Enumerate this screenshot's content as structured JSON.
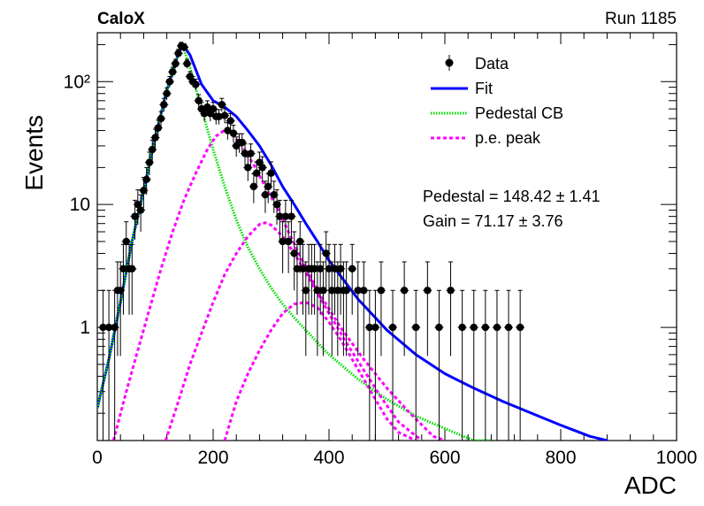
{
  "header": {
    "experiment": "CaloX",
    "run": "Run 1185"
  },
  "chart_data": {
    "type": "scatter",
    "title": "",
    "xlabel": "ADC",
    "ylabel": "Events",
    "xlim": [
      0,
      1000
    ],
    "ylim": [
      0.12,
      250
    ],
    "yscale": "log",
    "x_ticks": [
      0,
      200,
      400,
      600,
      800,
      1000
    ],
    "x_tick_labels": [
      "0",
      "200",
      "400",
      "600",
      "800",
      "1000"
    ],
    "y_ticks": [
      1,
      10,
      100
    ],
    "y_tick_labels": [
      "1",
      "10",
      "10²"
    ],
    "legend_position": "top-right",
    "colors": {
      "data": "#000000",
      "fit": "#0000ff",
      "pedestal": "#00dd00",
      "pe": "#ff00ff"
    },
    "legend": [
      {
        "label": "Data",
        "style": "marker"
      },
      {
        "label": "Fit",
        "style": "line"
      },
      {
        "label": "Pedestal CB",
        "style": "dotted"
      },
      {
        "label": "p.e. peak",
        "style": "dashed"
      }
    ],
    "annotations": {
      "pedestal": "Pedestal = 148.42 ± 1.41",
      "gain": "Gain = 71.17 ± 3.76"
    },
    "series": [
      {
        "name": "Data",
        "x": [
          10,
          20,
          30,
          35,
          40,
          45,
          50,
          55,
          60,
          65,
          70,
          75,
          80,
          85,
          90,
          95,
          100,
          105,
          110,
          115,
          120,
          125,
          130,
          135,
          140,
          145,
          150,
          155,
          160,
          165,
          170,
          175,
          180,
          185,
          190,
          195,
          200,
          205,
          210,
          215,
          220,
          225,
          230,
          235,
          240,
          245,
          250,
          255,
          260,
          265,
          270,
          275,
          280,
          285,
          290,
          295,
          300,
          305,
          310,
          315,
          320,
          325,
          330,
          335,
          340,
          345,
          350,
          355,
          360,
          365,
          370,
          375,
          380,
          385,
          390,
          395,
          400,
          405,
          410,
          415,
          420,
          425,
          430,
          440,
          450,
          460,
          470,
          480,
          490,
          510,
          530,
          550,
          570,
          590,
          610,
          630,
          650,
          670,
          690,
          710,
          730
        ],
        "y": [
          1,
          1,
          1,
          2,
          2,
          3,
          5,
          3,
          3,
          8,
          10,
          9,
          13,
          16,
          22,
          28,
          35,
          42,
          50,
          65,
          80,
          100,
          120,
          140,
          170,
          195,
          190,
          140,
          110,
          100,
          95,
          70,
          60,
          55,
          62,
          55,
          60,
          52,
          52,
          65,
          53,
          40,
          48,
          38,
          30,
          32,
          32,
          26,
          20,
          26,
          14,
          18,
          22,
          20,
          12,
          14,
          18,
          12,
          10,
          8,
          5,
          8,
          5,
          8,
          4,
          3,
          5,
          3,
          2,
          3,
          3,
          3,
          2,
          3,
          2,
          4,
          3,
          2,
          3,
          2,
          3,
          2,
          2,
          3,
          2,
          2,
          1,
          1,
          2,
          1,
          2,
          1,
          2,
          1,
          2,
          1,
          1,
          1,
          1,
          1,
          1
        ]
      },
      {
        "name": "Fit",
        "x": [
          0,
          20,
          40,
          60,
          80,
          100,
          120,
          140,
          148,
          160,
          180,
          200,
          220,
          240,
          260,
          280,
          300,
          320,
          340,
          360,
          380,
          400,
          450,
          500,
          550,
          600,
          650,
          700,
          750,
          800,
          850,
          880
        ],
        "y": [
          0.22,
          0.55,
          1.6,
          5,
          13,
          35,
          85,
          170,
          200,
          165,
          95,
          70,
          62,
          52,
          40,
          30,
          21,
          14,
          10,
          7,
          5,
          3.5,
          1.7,
          0.95,
          0.6,
          0.42,
          0.32,
          0.25,
          0.2,
          0.16,
          0.13,
          0.12
        ]
      },
      {
        "name": "Pedestal CB",
        "x": [
          0,
          20,
          40,
          60,
          80,
          100,
          120,
          140,
          148,
          160,
          180,
          200,
          220,
          240,
          260,
          280,
          300,
          320,
          340,
          360,
          380,
          400,
          450,
          500,
          550,
          600,
          650,
          680
        ],
        "y": [
          0.22,
          0.55,
          1.6,
          5,
          13,
          35,
          85,
          170,
          195,
          130,
          60,
          28,
          14,
          7.5,
          4.5,
          3,
          2.1,
          1.55,
          1.2,
          0.95,
          0.75,
          0.6,
          0.38,
          0.26,
          0.19,
          0.15,
          0.12,
          0.12
        ]
      },
      {
        "name": "p.e. peak 1",
        "x": [
          28,
          50,
          70,
          90,
          110,
          130,
          150,
          170,
          190,
          205,
          219,
          235,
          250,
          270,
          290,
          310,
          330,
          350,
          380,
          420,
          460,
          500,
          540,
          580,
          600
        ],
        "y": [
          0.12,
          0.3,
          0.65,
          1.4,
          3,
          6,
          11,
          18,
          28,
          36,
          40,
          36,
          30,
          21,
          14,
          9.5,
          6,
          3.8,
          2,
          1,
          0.55,
          0.32,
          0.2,
          0.13,
          0.12
        ]
      },
      {
        "name": "p.e. peak 2",
        "x": [
          118,
          140,
          160,
          180,
          200,
          220,
          240,
          260,
          280,
          290,
          300,
          320,
          340,
          360,
          380,
          400,
          430,
          460,
          490,
          520,
          560
        ],
        "y": [
          0.12,
          0.25,
          0.5,
          0.9,
          1.6,
          2.7,
          4,
          5.5,
          6.9,
          7.1,
          6.8,
          5.5,
          4,
          2.8,
          1.9,
          1.3,
          0.75,
          0.45,
          0.27,
          0.17,
          0.12
        ]
      },
      {
        "name": "p.e. peak 3",
        "x": [
          220,
          240,
          260,
          280,
          300,
          320,
          340,
          360,
          380,
          400,
          420,
          440,
          460,
          480,
          500,
          520,
          550
        ],
        "y": [
          0.12,
          0.25,
          0.42,
          0.65,
          0.95,
          1.3,
          1.55,
          1.6,
          1.45,
          1.1,
          0.8,
          0.55,
          0.38,
          0.26,
          0.18,
          0.14,
          0.12
        ]
      }
    ]
  }
}
